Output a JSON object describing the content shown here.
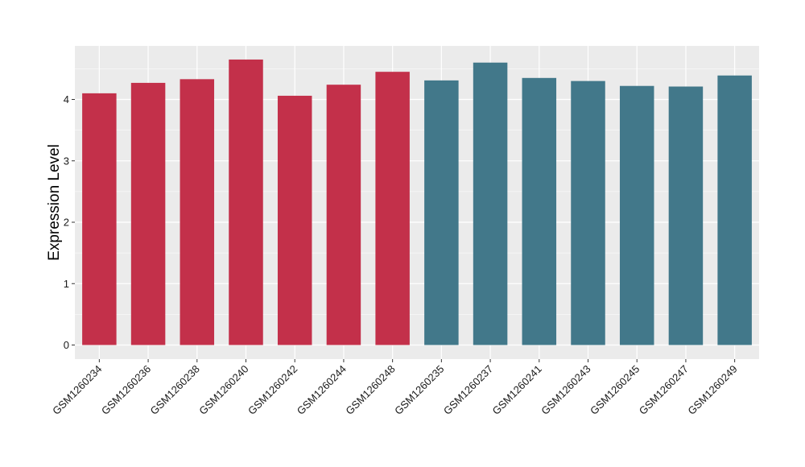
{
  "chart_data": {
    "type": "bar",
    "title": "",
    "xlabel": "",
    "ylabel": "Expression Level",
    "ylim": [
      0,
      4.88
    ],
    "yticks": [
      0,
      1,
      2,
      3,
      4
    ],
    "grid": true,
    "legend": "none",
    "categories": [
      "GSM1260234",
      "GSM1260236",
      "GSM1260238",
      "GSM1260240",
      "GSM1260242",
      "GSM1260244",
      "GSM1260248",
      "GSM1260235",
      "GSM1260237",
      "GSM1260241",
      "GSM1260243",
      "GSM1260245",
      "GSM1260247",
      "GSM1260249"
    ],
    "values": [
      4.1,
      4.27,
      4.33,
      4.65,
      4.06,
      4.24,
      4.45,
      4.31,
      4.6,
      4.35,
      4.3,
      4.22,
      4.21,
      4.39
    ],
    "groups": [
      "A",
      "A",
      "A",
      "A",
      "A",
      "A",
      "A",
      "B",
      "B",
      "B",
      "B",
      "B",
      "B",
      "B"
    ],
    "colors": {
      "A": "#c3304a",
      "B": "#42788a",
      "panel": "#ebebeb",
      "grid_major": "#ffffff",
      "tick": "#333333"
    }
  }
}
